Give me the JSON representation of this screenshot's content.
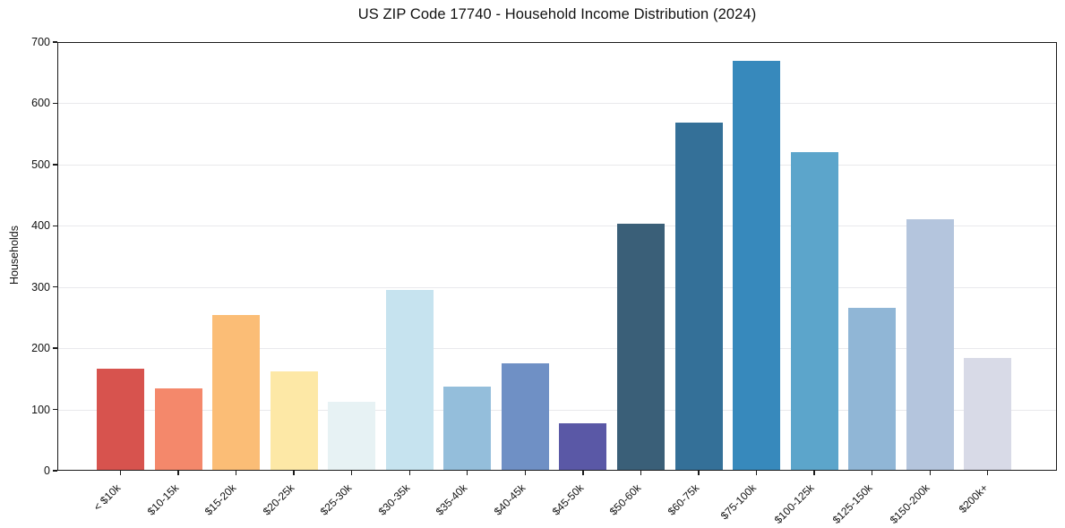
{
  "chart_data": {
    "type": "bar",
    "title": "US ZIP Code 17740 - Household Income Distribution (2024)",
    "xlabel": "",
    "ylabel": "Households",
    "categories": [
      "< $10k",
      "$10-15k",
      "$15-20k",
      "$20-25k",
      "$25-30k",
      "$30-35k",
      "$35-40k",
      "$40-45k",
      "$45-50k",
      "$50-60k",
      "$60-75k",
      "$75-100k",
      "$100-125k",
      "$125-150k",
      "$150-200k",
      "$200k+"
    ],
    "values": [
      167,
      135,
      255,
      162,
      112,
      295,
      138,
      175,
      77,
      404,
      568,
      670,
      521,
      266,
      411,
      184
    ],
    "bar_colors": [
      "#d7534e",
      "#f4886b",
      "#fbbd76",
      "#fde8a6",
      "#e7f2f4",
      "#c6e3ef",
      "#94bedb",
      "#6f90c5",
      "#5a58a6",
      "#3a5f78",
      "#347098",
      "#3789bc",
      "#5ca5cb",
      "#90b6d6",
      "#b4c5dd",
      "#d8dae7"
    ],
    "ylim": [
      0,
      700
    ],
    "yticks": [
      0,
      100,
      200,
      300,
      400,
      500,
      600,
      700
    ],
    "x_tick_rotation_deg": 45,
    "grid": "horizontal",
    "grid_color": "#e9e9ec",
    "axis_color": "#1a1a1a",
    "background_color": "#ffffff",
    "legend": "none"
  }
}
